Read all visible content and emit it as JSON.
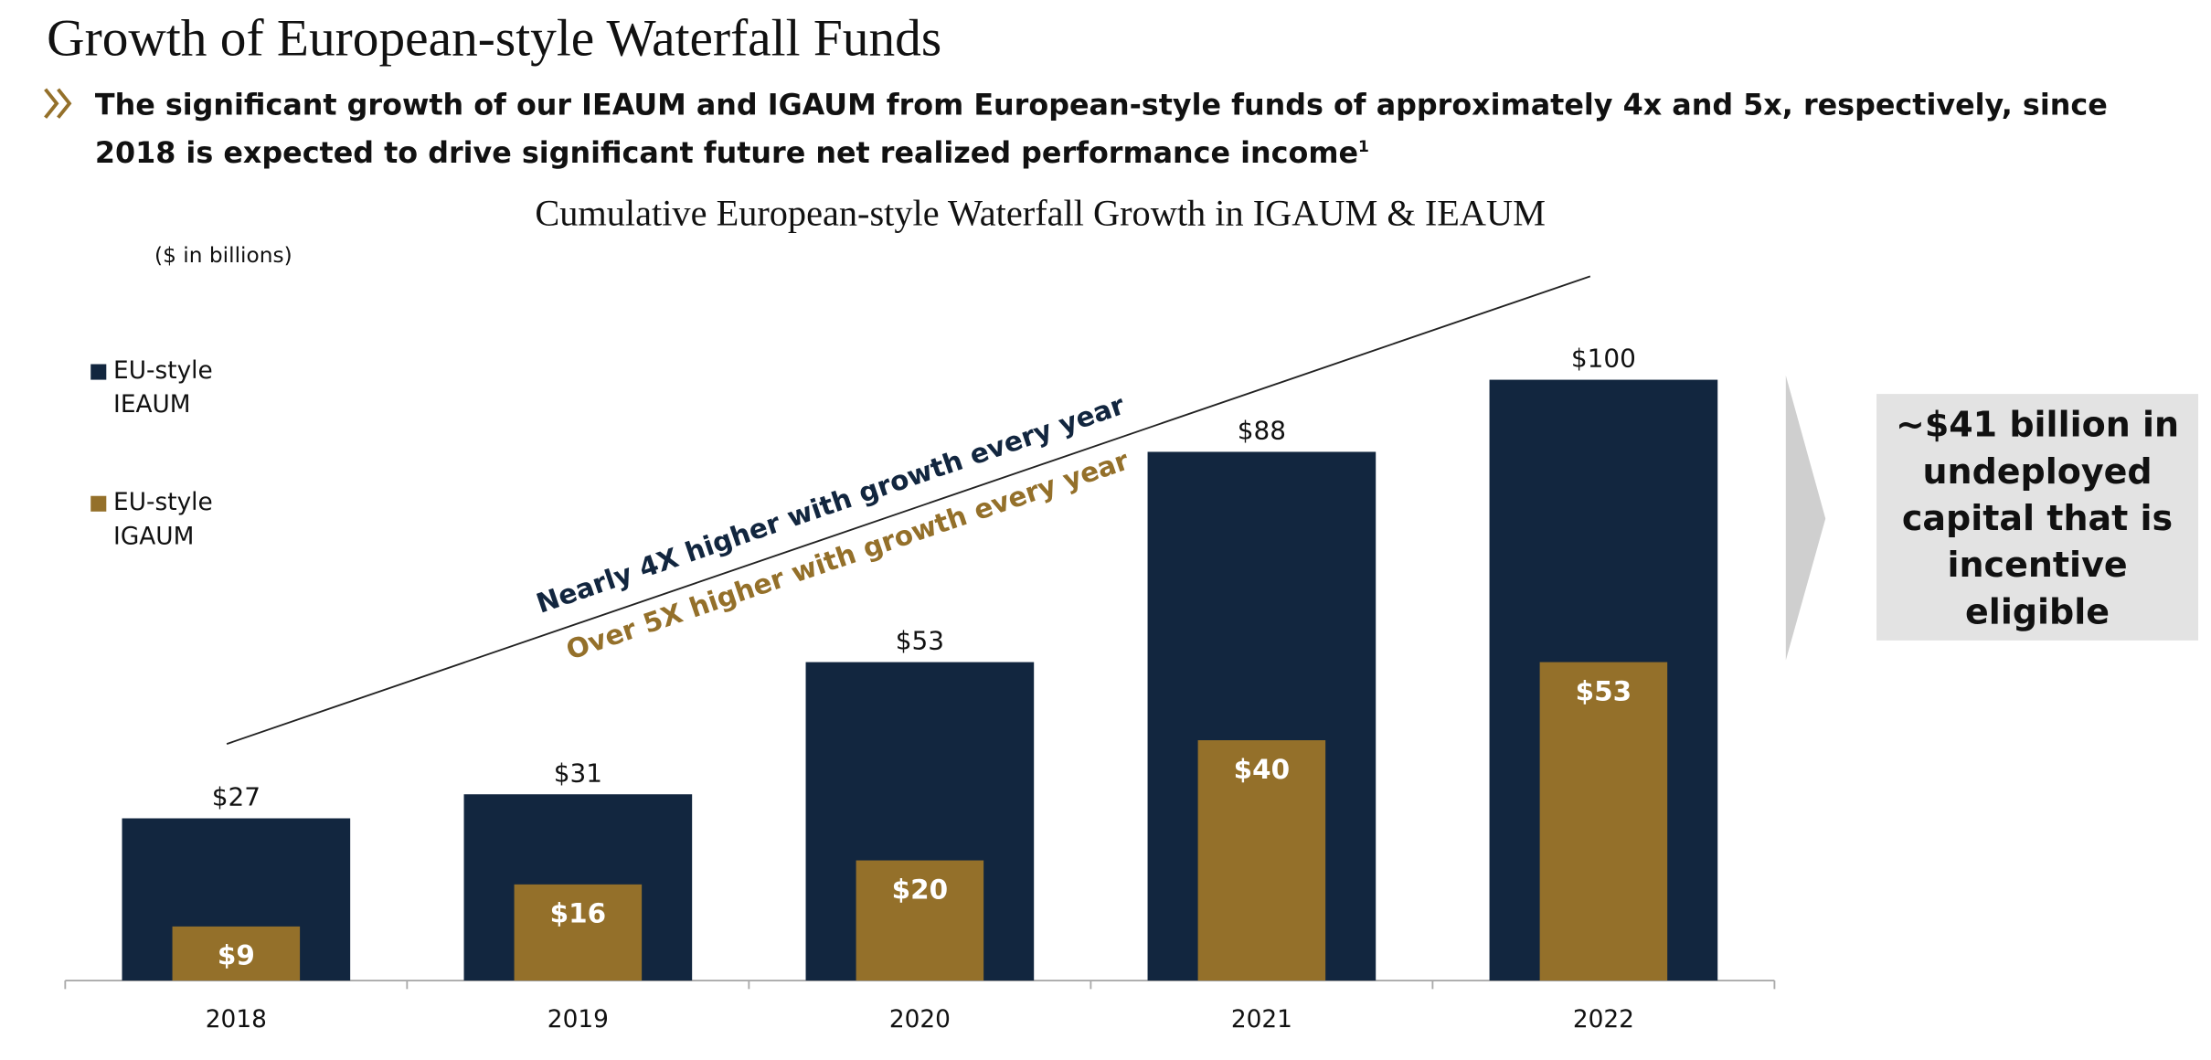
{
  "header": {
    "title": "Growth of European-style Waterfall Funds",
    "bullet": "The significant growth of our IEAUM and IGAUM from European-style funds of approximately 4x and 5x, respectively, since 2018 is expected to drive significant future net realized performance income",
    "footnote_marker": "1"
  },
  "chart_data": {
    "type": "bar",
    "title": "Cumulative European-style Waterfall Growth in IGAUM & IEAUM",
    "units": "($ in billions)",
    "categories": [
      "2018",
      "2019",
      "2020",
      "2021",
      "2022"
    ],
    "series": [
      {
        "name": "EU-style IEAUM",
        "color": "#12263f",
        "values": [
          27,
          31,
          53,
          88,
          100
        ],
        "value_labels": [
          "$27",
          "$31",
          "$53",
          "$88",
          "$100"
        ]
      },
      {
        "name": "EU-style IGAUM",
        "color": "#94702a",
        "values": [
          9,
          16,
          20,
          40,
          53
        ],
        "value_labels": [
          "$9",
          "$16",
          "$20",
          "$40",
          "$53"
        ]
      }
    ],
    "annotations": [
      "Nearly 4X higher with growth every year",
      "Over 5X higher with growth every year"
    ],
    "callout": "~$41 billion in undeployed capital that is incentive eligible"
  }
}
